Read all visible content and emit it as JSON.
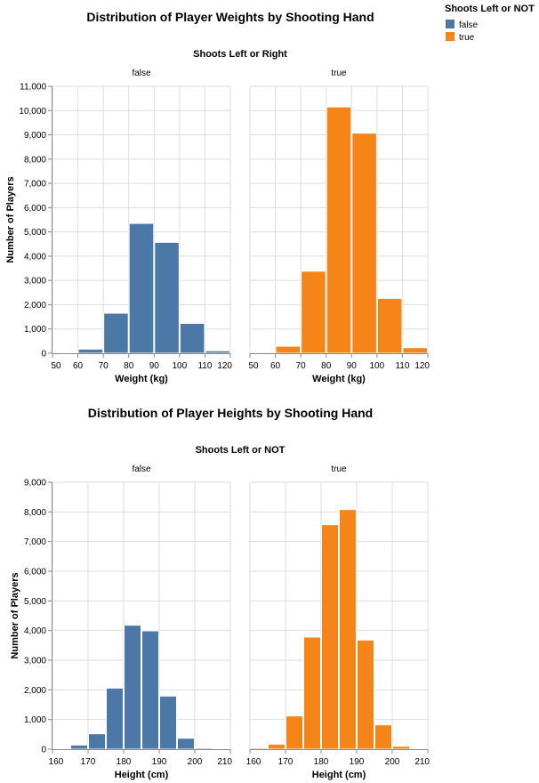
{
  "legend": {
    "title": "Shoots Left or NOT",
    "items": [
      {
        "label": "false",
        "color": "#4c78a8"
      },
      {
        "label": "true",
        "color": "#f58518"
      }
    ]
  },
  "chart_data": [
    {
      "type": "bar",
      "title": "Distribution of Player Weights by Shooting Hand",
      "facet_title": "Shoots Left or Right",
      "xlabel": "Weight (kg)",
      "ylabel": "Number of Players",
      "xlim": [
        50,
        120
      ],
      "ylim": [
        0,
        11000
      ],
      "x_ticks": [
        50,
        60,
        70,
        80,
        90,
        100,
        110,
        120
      ],
      "y_ticks": [
        0,
        1000,
        2000,
        3000,
        4000,
        5000,
        6000,
        7000,
        8000,
        9000,
        10000,
        11000
      ],
      "grid": true,
      "bins": [
        [
          50,
          60
        ],
        [
          60,
          70
        ],
        [
          70,
          80
        ],
        [
          80,
          90
        ],
        [
          90,
          100
        ],
        [
          100,
          110
        ],
        [
          110,
          120
        ]
      ],
      "series": [
        {
          "name": "false",
          "color": "#4c78a8",
          "values": [
            20,
            170,
            1650,
            5350,
            4570,
            1230,
            100
          ]
        },
        {
          "name": "true",
          "color": "#f58518",
          "values": [
            40,
            290,
            3380,
            10150,
            9070,
            2260,
            230
          ]
        }
      ]
    },
    {
      "type": "bar",
      "title": "Distribution of Player Heights by Shooting Hand",
      "facet_title": "Shoots Left or NOT",
      "xlabel": "Height (cm)",
      "ylabel": "Number of Players",
      "xlim": [
        160,
        210
      ],
      "ylim": [
        0,
        9000
      ],
      "x_ticks": [
        160,
        170,
        180,
        190,
        200,
        210
      ],
      "y_ticks": [
        0,
        1000,
        2000,
        3000,
        4000,
        5000,
        6000,
        7000,
        8000,
        9000
      ],
      "grid": true,
      "bins": [
        [
          160,
          165
        ],
        [
          165,
          170
        ],
        [
          170,
          175
        ],
        [
          175,
          180
        ],
        [
          180,
          185
        ],
        [
          185,
          190
        ],
        [
          190,
          195
        ],
        [
          195,
          200
        ],
        [
          200,
          205
        ],
        [
          205,
          210
        ]
      ],
      "series": [
        {
          "name": "false",
          "color": "#4c78a8",
          "values": [
            10,
            140,
            520,
            2060,
            4180,
            3990,
            1790,
            370,
            40,
            5
          ]
        },
        {
          "name": "true",
          "color": "#f58518",
          "values": [
            40,
            170,
            1120,
            3780,
            7570,
            8080,
            3680,
            820,
            100,
            30
          ]
        }
      ]
    }
  ]
}
